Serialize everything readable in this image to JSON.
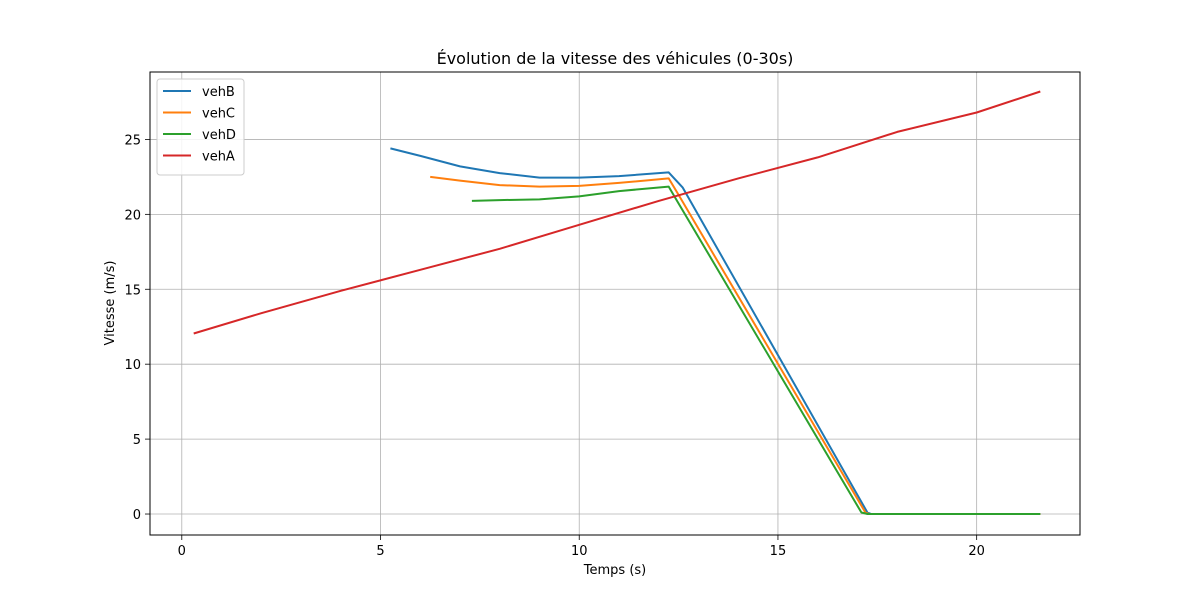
{
  "chart_data": {
    "type": "line",
    "title": "Évolution de la vitesse des véhicules (0-30s)",
    "xlabel": "Temps (s)",
    "ylabel": "Vitesse (m/s)",
    "xlim": [
      -0.8,
      22.6
    ],
    "ylim": [
      -1.4,
      29.5
    ],
    "xticks": [
      0,
      5,
      10,
      15,
      20
    ],
    "yticks": [
      0,
      5,
      10,
      15,
      20,
      25
    ],
    "grid": true,
    "legend_position": "top-left",
    "series": [
      {
        "name": "vehB",
        "color": "#1f77b4",
        "points": [
          [
            5.25,
            24.4
          ],
          [
            6.0,
            23.9
          ],
          [
            7.0,
            23.2
          ],
          [
            8.0,
            22.75
          ],
          [
            9.0,
            22.45
          ],
          [
            10.0,
            22.45
          ],
          [
            11.0,
            22.55
          ],
          [
            12.25,
            22.8
          ],
          [
            12.6,
            21.8
          ],
          [
            17.25,
            0.1
          ],
          [
            17.35,
            0
          ],
          [
            21.6,
            0
          ]
        ]
      },
      {
        "name": "vehC",
        "color": "#ff7f0e",
        "points": [
          [
            6.25,
            22.5
          ],
          [
            7.0,
            22.25
          ],
          [
            8.0,
            21.95
          ],
          [
            9.0,
            21.85
          ],
          [
            10.0,
            21.9
          ],
          [
            11.0,
            22.1
          ],
          [
            12.25,
            22.4
          ],
          [
            12.5,
            21.3
          ],
          [
            17.2,
            0.1
          ],
          [
            17.3,
            0
          ],
          [
            21.6,
            0
          ]
        ]
      },
      {
        "name": "vehD",
        "color": "#2ca02c",
        "points": [
          [
            7.3,
            20.9
          ],
          [
            8.0,
            20.95
          ],
          [
            9.0,
            21.0
          ],
          [
            10.0,
            21.2
          ],
          [
            11.0,
            21.55
          ],
          [
            12.25,
            21.85
          ],
          [
            12.45,
            20.95
          ],
          [
            17.1,
            0.1
          ],
          [
            17.25,
            0
          ],
          [
            21.6,
            0
          ]
        ]
      },
      {
        "name": "vehA",
        "color": "#d62728",
        "points": [
          [
            0.3,
            12.05
          ],
          [
            2.0,
            13.4
          ],
          [
            4.0,
            14.9
          ],
          [
            6.0,
            16.3
          ],
          [
            8.0,
            17.7
          ],
          [
            10.0,
            19.3
          ],
          [
            12.0,
            20.9
          ],
          [
            14.0,
            22.4
          ],
          [
            16.0,
            23.8
          ],
          [
            18.0,
            25.5
          ],
          [
            20.0,
            26.8
          ],
          [
            21.6,
            28.2
          ]
        ]
      }
    ]
  }
}
